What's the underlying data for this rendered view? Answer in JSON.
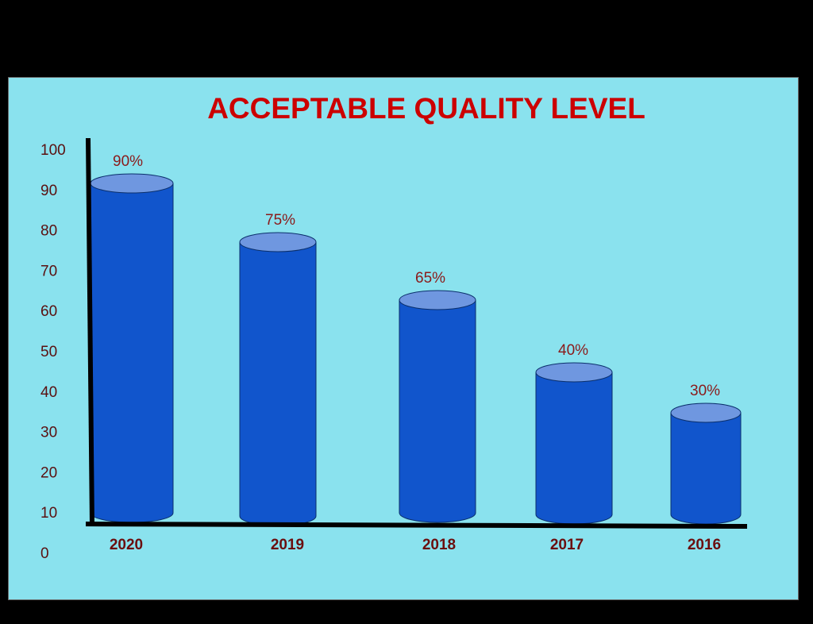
{
  "chart_data": {
    "type": "bar",
    "style": "3d-cylinder",
    "title": "ACCEPTABLE QUALITY LEVEL",
    "categories": [
      "2020",
      "2019",
      "2018",
      "2017",
      "2016"
    ],
    "values": [
      90,
      75,
      65,
      40,
      30
    ],
    "value_labels": [
      "90%",
      "75%",
      "65%",
      "40%",
      "30%"
    ],
    "xlabel": "",
    "ylabel": "",
    "ylim": [
      0,
      100
    ],
    "yticks": [
      0,
      10,
      20,
      30,
      40,
      50,
      60,
      70,
      80,
      90,
      100
    ],
    "grid": false,
    "legend": null,
    "colors": {
      "background": "#8ae2ee",
      "bar_body": "#1155cc",
      "bar_top": "#6f97e0",
      "title": "#cc0000",
      "labels": "#6b0e0e",
      "axis": "#000000"
    }
  }
}
